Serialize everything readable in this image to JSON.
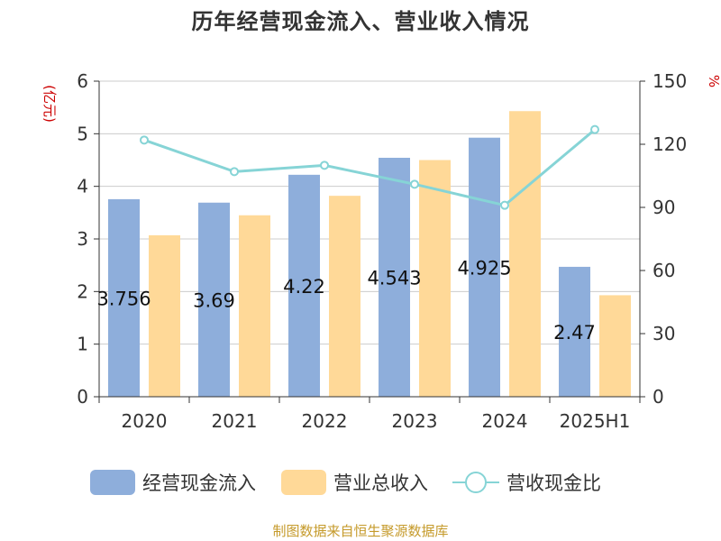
{
  "chart_data": {
    "type": "bar",
    "title": "历年经营现金流入、营业收入情况",
    "categories": [
      "2020",
      "2021",
      "2022",
      "2023",
      "2024",
      "2025H1"
    ],
    "series": [
      {
        "name": "经营现金流入",
        "type": "bar",
        "axis": "left",
        "color": "#8eaedb",
        "values": [
          3.756,
          3.69,
          4.22,
          4.543,
          4.925,
          2.47
        ],
        "data_labels": [
          "3.756",
          "3.69",
          "4.22",
          "4.543",
          "4.925",
          "2.47"
        ]
      },
      {
        "name": "营业总收入",
        "type": "bar",
        "axis": "left",
        "color": "#ffd998",
        "values": [
          3.07,
          3.45,
          3.82,
          4.5,
          5.43,
          1.93
        ]
      },
      {
        "name": "营收现金比",
        "type": "line",
        "axis": "right",
        "color": "#86d4d6",
        "values": [
          122,
          107,
          110,
          101,
          91,
          127
        ]
      }
    ],
    "left_axis": {
      "label": "(亿元)",
      "ylim": [
        0,
        6
      ],
      "ticks": [
        "0",
        "1",
        "2",
        "3",
        "4",
        "5",
        "6"
      ]
    },
    "right_axis": {
      "label": "%",
      "ylim": [
        0,
        150
      ],
      "ticks": [
        "0",
        "30",
        "60",
        "90",
        "120",
        "150"
      ]
    },
    "grid": true,
    "legend_position": "bottom"
  },
  "footer": "制图数据来自恒生聚源数据库"
}
